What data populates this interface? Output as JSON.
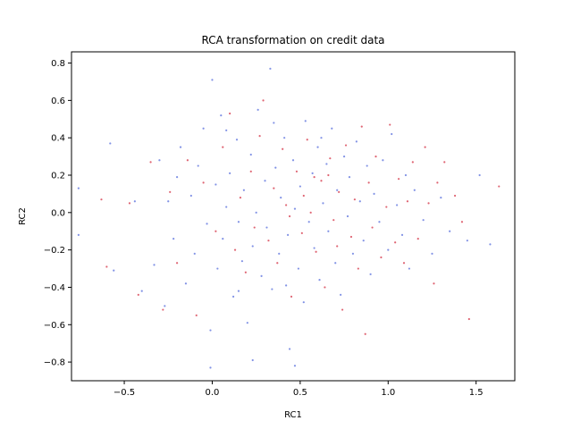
{
  "chart_data": {
    "type": "scatter",
    "title": "RCA transformation on credit data",
    "xlabel": "RC1",
    "ylabel": "RC2",
    "xlim": [
      -0.8,
      1.72
    ],
    "ylim": [
      -0.9,
      0.86
    ],
    "x_ticks": [
      -0.5,
      0.0,
      0.5,
      1.0,
      1.5
    ],
    "x_tick_labels": [
      "−0.5",
      "0.0",
      "0.5",
      "1.0",
      "1.5"
    ],
    "y_ticks": [
      -0.8,
      -0.6,
      -0.4,
      -0.2,
      0.0,
      0.2,
      0.4,
      0.6,
      0.8
    ],
    "y_tick_labels": [
      "−0.8",
      "−0.6",
      "−0.4",
      "−0.2",
      "0.0",
      "0.2",
      "0.4",
      "0.6",
      "0.8"
    ],
    "grid": false,
    "legend": "none",
    "series": [
      {
        "color": "#6b7fe0",
        "points": [
          [
            -0.76,
            0.13
          ],
          [
            -0.76,
            -0.12
          ],
          [
            -0.58,
            0.37
          ],
          [
            -0.56,
            -0.31
          ],
          [
            -0.44,
            0.06
          ],
          [
            -0.4,
            -0.42
          ],
          [
            -0.33,
            -0.28
          ],
          [
            -0.3,
            0.28
          ],
          [
            -0.27,
            -0.5
          ],
          [
            -0.25,
            0.06
          ],
          [
            -0.22,
            -0.14
          ],
          [
            -0.2,
            0.19
          ],
          [
            -0.18,
            0.35
          ],
          [
            -0.15,
            -0.38
          ],
          [
            -0.12,
            0.09
          ],
          [
            -0.1,
            -0.22
          ],
          [
            -0.08,
            0.25
          ],
          [
            -0.05,
            0.45
          ],
          [
            -0.03,
            -0.06
          ],
          [
            -0.01,
            -0.63
          ],
          [
            0.0,
            0.71
          ],
          [
            0.02,
            0.15
          ],
          [
            0.03,
            -0.3
          ],
          [
            0.05,
            0.52
          ],
          [
            0.06,
            -0.14
          ],
          [
            0.08,
            0.03
          ],
          [
            0.1,
            0.21
          ],
          [
            0.12,
            -0.45
          ],
          [
            0.14,
            0.39
          ],
          [
            0.15,
            -0.05
          ],
          [
            0.17,
            -0.26
          ],
          [
            0.18,
            0.12
          ],
          [
            0.2,
            -0.59
          ],
          [
            0.22,
            0.31
          ],
          [
            0.23,
            -0.18
          ],
          [
            0.25,
            0.0
          ],
          [
            0.26,
            0.55
          ],
          [
            0.28,
            -0.34
          ],
          [
            0.3,
            0.17
          ],
          [
            0.31,
            -0.08
          ],
          [
            0.33,
            0.77
          ],
          [
            0.34,
            -0.41
          ],
          [
            0.36,
            0.24
          ],
          [
            0.38,
            -0.22
          ],
          [
            0.39,
            0.08
          ],
          [
            0.41,
            0.4
          ],
          [
            0.43,
            -0.12
          ],
          [
            0.44,
            -0.73
          ],
          [
            0.46,
            0.28
          ],
          [
            0.47,
            0.02
          ],
          [
            0.49,
            -0.3
          ],
          [
            0.5,
            0.14
          ],
          [
            0.52,
            -0.48
          ],
          [
            0.53,
            0.49
          ],
          [
            0.55,
            -0.05
          ],
          [
            0.57,
            0.21
          ],
          [
            0.58,
            -0.19
          ],
          [
            0.6,
            0.35
          ],
          [
            0.61,
            -0.36
          ],
          [
            0.63,
            0.05
          ],
          [
            0.65,
            0.26
          ],
          [
            0.66,
            -0.1
          ],
          [
            0.68,
            0.45
          ],
          [
            0.7,
            -0.27
          ],
          [
            0.71,
            0.12
          ],
          [
            0.73,
            -0.44
          ],
          [
            0.75,
            0.3
          ],
          [
            0.77,
            -0.02
          ],
          [
            0.78,
            0.19
          ],
          [
            0.8,
            -0.22
          ],
          [
            0.82,
            0.38
          ],
          [
            0.84,
            0.06
          ],
          [
            0.86,
            -0.15
          ],
          [
            0.88,
            0.25
          ],
          [
            0.9,
            -0.33
          ],
          [
            0.92,
            0.1
          ],
          [
            0.95,
            -0.05
          ],
          [
            0.97,
            0.28
          ],
          [
            1.0,
            -0.2
          ],
          [
            1.02,
            0.42
          ],
          [
            1.05,
            0.04
          ],
          [
            1.08,
            -0.12
          ],
          [
            1.1,
            0.2
          ],
          [
            1.12,
            -0.3
          ],
          [
            1.15,
            0.12
          ],
          [
            1.2,
            -0.04
          ],
          [
            1.25,
            -0.22
          ],
          [
            1.3,
            0.08
          ],
          [
            1.35,
            -0.1
          ],
          [
            1.45,
            -0.15
          ],
          [
            1.52,
            0.2
          ],
          [
            1.58,
            -0.17
          ],
          [
            0.23,
            -0.79
          ],
          [
            0.47,
            -0.82
          ],
          [
            -0.01,
            -0.83
          ],
          [
            0.08,
            0.44
          ],
          [
            0.35,
            0.48
          ],
          [
            0.62,
            0.4
          ],
          [
            0.15,
            -0.42
          ],
          [
            0.42,
            -0.39
          ]
        ]
      },
      {
        "color": "#d94a5a",
        "points": [
          [
            -0.63,
            0.07
          ],
          [
            -0.6,
            -0.29
          ],
          [
            -0.47,
            0.05
          ],
          [
            -0.42,
            -0.44
          ],
          [
            -0.35,
            0.27
          ],
          [
            -0.28,
            -0.52
          ],
          [
            -0.24,
            0.11
          ],
          [
            -0.2,
            -0.27
          ],
          [
            -0.14,
            0.28
          ],
          [
            -0.09,
            -0.55
          ],
          [
            -0.05,
            0.16
          ],
          [
            0.02,
            -0.1
          ],
          [
            0.06,
            0.35
          ],
          [
            0.1,
            0.53
          ],
          [
            0.13,
            -0.2
          ],
          [
            0.16,
            0.08
          ],
          [
            0.19,
            -0.32
          ],
          [
            0.22,
            0.22
          ],
          [
            0.24,
            -0.08
          ],
          [
            0.27,
            0.41
          ],
          [
            0.29,
            0.6
          ],
          [
            0.32,
            -0.15
          ],
          [
            0.35,
            0.13
          ],
          [
            0.37,
            -0.27
          ],
          [
            0.4,
            0.34
          ],
          [
            0.42,
            0.04
          ],
          [
            0.45,
            -0.45
          ],
          [
            0.48,
            0.22
          ],
          [
            0.51,
            -0.11
          ],
          [
            0.54,
            0.39
          ],
          [
            0.56,
            0.0
          ],
          [
            0.59,
            -0.21
          ],
          [
            0.62,
            0.17
          ],
          [
            0.64,
            -0.4
          ],
          [
            0.67,
            0.29
          ],
          [
            0.69,
            -0.04
          ],
          [
            0.72,
            0.11
          ],
          [
            0.74,
            -0.52
          ],
          [
            0.76,
            0.36
          ],
          [
            0.79,
            -0.13
          ],
          [
            0.81,
            0.07
          ],
          [
            0.83,
            -0.3
          ],
          [
            0.85,
            0.46
          ],
          [
            0.87,
            -0.65
          ],
          [
            0.89,
            0.16
          ],
          [
            0.91,
            -0.08
          ],
          [
            0.93,
            0.3
          ],
          [
            0.96,
            -0.24
          ],
          [
            0.99,
            0.03
          ],
          [
            1.01,
            0.47
          ],
          [
            1.04,
            -0.16
          ],
          [
            1.06,
            0.18
          ],
          [
            1.09,
            -0.27
          ],
          [
            1.11,
            0.06
          ],
          [
            1.14,
            0.27
          ],
          [
            1.17,
            -0.14
          ],
          [
            1.21,
            0.35
          ],
          [
            1.23,
            0.05
          ],
          [
            1.26,
            -0.38
          ],
          [
            1.28,
            0.16
          ],
          [
            1.32,
            0.27
          ],
          [
            1.38,
            0.09
          ],
          [
            1.42,
            -0.05
          ],
          [
            1.46,
            -0.57
          ],
          [
            1.63,
            0.14
          ],
          [
            0.52,
            0.09
          ],
          [
            0.58,
            0.19
          ],
          [
            0.66,
            0.2
          ],
          [
            0.44,
            -0.02
          ],
          [
            0.71,
            -0.18
          ]
        ]
      }
    ]
  }
}
